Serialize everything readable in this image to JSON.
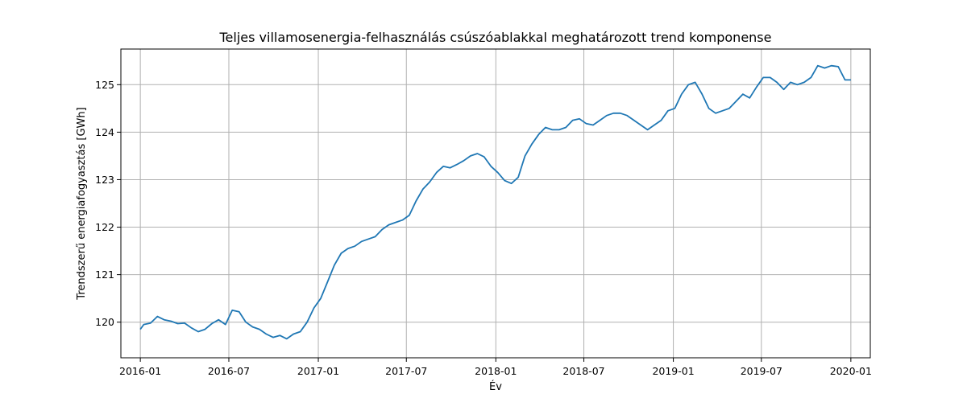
{
  "chart_data": {
    "type": "line",
    "title": "Teljes villamosenergia-felhasználás csúszóablakkal meghatározott trend komponense",
    "xlabel": "Év",
    "ylabel": "Trendszerű energiafogyasztás [GWh]",
    "xlim": [
      "2015-11-22",
      "2020-02-10"
    ],
    "ylim": [
      119.25,
      125.75
    ],
    "grid": true,
    "x_ticks": [
      "2016-01",
      "2016-07",
      "2017-01",
      "2017-07",
      "2018-01",
      "2018-07",
      "2019-01",
      "2019-07",
      "2020-01"
    ],
    "y_ticks": [
      120,
      121,
      122,
      123,
      124,
      125
    ],
    "series": [
      {
        "color": "#1f77b4",
        "points": [
          [
            "2016-01-01",
            119.85
          ],
          [
            "2016-01-08",
            119.95
          ],
          [
            "2016-01-22",
            119.98
          ],
          [
            "2016-02-05",
            120.12
          ],
          [
            "2016-02-19",
            120.05
          ],
          [
            "2016-03-04",
            120.02
          ],
          [
            "2016-03-18",
            119.97
          ],
          [
            "2016-04-01",
            119.98
          ],
          [
            "2016-04-15",
            119.88
          ],
          [
            "2016-04-29",
            119.8
          ],
          [
            "2016-05-13",
            119.85
          ],
          [
            "2016-05-27",
            119.97
          ],
          [
            "2016-06-10",
            120.05
          ],
          [
            "2016-06-24",
            119.95
          ],
          [
            "2016-07-08",
            120.25
          ],
          [
            "2016-07-22",
            120.22
          ],
          [
            "2016-08-05",
            120.0
          ],
          [
            "2016-08-19",
            119.9
          ],
          [
            "2016-09-02",
            119.85
          ],
          [
            "2016-09-16",
            119.75
          ],
          [
            "2016-09-30",
            119.68
          ],
          [
            "2016-10-14",
            119.72
          ],
          [
            "2016-10-28",
            119.65
          ],
          [
            "2016-11-11",
            119.75
          ],
          [
            "2016-11-25",
            119.8
          ],
          [
            "2016-12-09",
            120.0
          ],
          [
            "2016-12-23",
            120.3
          ],
          [
            "2017-01-06",
            120.5
          ],
          [
            "2017-01-20",
            120.85
          ],
          [
            "2017-02-03",
            121.2
          ],
          [
            "2017-02-17",
            121.45
          ],
          [
            "2017-03-03",
            121.55
          ],
          [
            "2017-03-17",
            121.6
          ],
          [
            "2017-03-31",
            121.7
          ],
          [
            "2017-04-14",
            121.75
          ],
          [
            "2017-04-28",
            121.8
          ],
          [
            "2017-05-12",
            121.95
          ],
          [
            "2017-05-26",
            122.05
          ],
          [
            "2017-06-09",
            122.1
          ],
          [
            "2017-06-23",
            122.15
          ],
          [
            "2017-07-07",
            122.25
          ],
          [
            "2017-07-21",
            122.55
          ],
          [
            "2017-08-04",
            122.8
          ],
          [
            "2017-08-18",
            122.95
          ],
          [
            "2017-09-01",
            123.15
          ],
          [
            "2017-09-15",
            123.28
          ],
          [
            "2017-09-29",
            123.25
          ],
          [
            "2017-10-13",
            123.32
          ],
          [
            "2017-10-27",
            123.4
          ],
          [
            "2017-11-10",
            123.5
          ],
          [
            "2017-11-24",
            123.55
          ],
          [
            "2017-12-08",
            123.48
          ],
          [
            "2017-12-22",
            123.28
          ],
          [
            "2018-01-05",
            123.15
          ],
          [
            "2018-01-19",
            122.98
          ],
          [
            "2018-02-02",
            122.92
          ],
          [
            "2018-02-16",
            123.05
          ],
          [
            "2018-03-02",
            123.5
          ],
          [
            "2018-03-16",
            123.75
          ],
          [
            "2018-03-30",
            123.95
          ],
          [
            "2018-04-13",
            124.1
          ],
          [
            "2018-04-27",
            124.05
          ],
          [
            "2018-05-11",
            124.05
          ],
          [
            "2018-05-25",
            124.1
          ],
          [
            "2018-06-08",
            124.25
          ],
          [
            "2018-06-22",
            124.28
          ],
          [
            "2018-07-06",
            124.18
          ],
          [
            "2018-07-20",
            124.15
          ],
          [
            "2018-08-03",
            124.25
          ],
          [
            "2018-08-17",
            124.35
          ],
          [
            "2018-08-31",
            124.4
          ],
          [
            "2018-09-14",
            124.4
          ],
          [
            "2018-09-28",
            124.35
          ],
          [
            "2018-10-12",
            124.25
          ],
          [
            "2018-10-26",
            124.15
          ],
          [
            "2018-11-09",
            124.05
          ],
          [
            "2018-11-23",
            124.15
          ],
          [
            "2018-12-07",
            124.25
          ],
          [
            "2018-12-21",
            124.45
          ],
          [
            "2019-01-04",
            124.5
          ],
          [
            "2019-01-18",
            124.8
          ],
          [
            "2019-02-01",
            125.0
          ],
          [
            "2019-02-15",
            125.05
          ],
          [
            "2019-03-01",
            124.8
          ],
          [
            "2019-03-15",
            124.5
          ],
          [
            "2019-03-29",
            124.4
          ],
          [
            "2019-04-12",
            124.45
          ],
          [
            "2019-04-26",
            124.5
          ],
          [
            "2019-05-10",
            124.65
          ],
          [
            "2019-05-24",
            124.8
          ],
          [
            "2019-06-07",
            124.72
          ],
          [
            "2019-06-21",
            124.95
          ],
          [
            "2019-07-05",
            125.15
          ],
          [
            "2019-07-19",
            125.15
          ],
          [
            "2019-08-02",
            125.05
          ],
          [
            "2019-08-16",
            124.9
          ],
          [
            "2019-08-30",
            125.05
          ],
          [
            "2019-09-13",
            125.0
          ],
          [
            "2019-09-27",
            125.05
          ],
          [
            "2019-10-11",
            125.15
          ],
          [
            "2019-10-25",
            125.4
          ],
          [
            "2019-11-08",
            125.35
          ],
          [
            "2019-11-22",
            125.4
          ],
          [
            "2019-12-06",
            125.38
          ],
          [
            "2019-12-20",
            125.1
          ],
          [
            "2020-01-01",
            125.1
          ]
        ]
      }
    ]
  }
}
